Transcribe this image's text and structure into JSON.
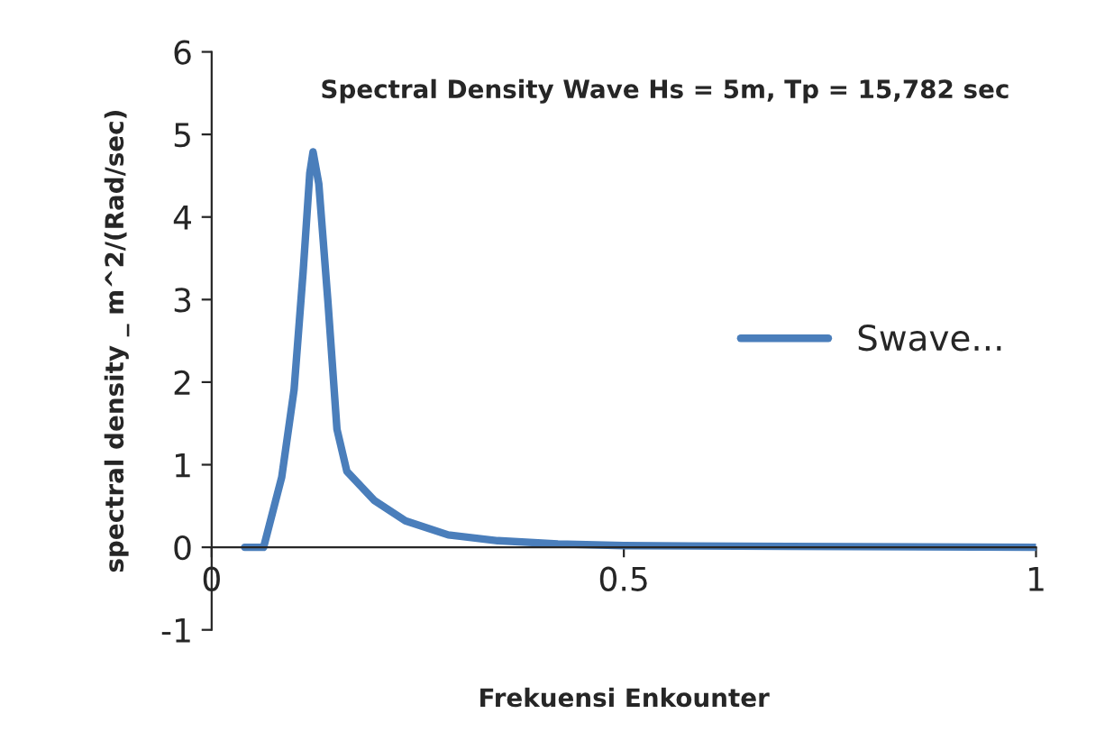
{
  "chart_data": {
    "type": "line",
    "title": "Spectral Density Wave Hs = 5m, Tp = 15,782 sec",
    "xlabel": "Frekuensi Enkounter",
    "ylabel": "spectral density _ m^2/(Rad/sec)",
    "x": [
      0.04,
      0.063,
      0.085,
      0.1,
      0.111,
      0.119,
      0.123,
      0.13,
      0.141,
      0.152,
      0.164,
      0.197,
      0.235,
      0.287,
      0.347,
      0.42,
      0.5,
      0.7,
      1.0
    ],
    "series": [
      {
        "name": "Swave...",
        "color": "#4a7ebb",
        "values": [
          0,
          0,
          0.85,
          1.91,
          3.34,
          4.53,
          4.79,
          4.4,
          2.98,
          1.43,
          0.92,
          0.57,
          0.32,
          0.15,
          0.08,
          0.04,
          0.02,
          0.01,
          0
        ]
      }
    ],
    "xlim": [
      0,
      1
    ],
    "ylim": [
      -1,
      6
    ],
    "xticks": [
      0,
      0.5,
      1
    ],
    "yticks": [
      -1,
      0,
      1,
      2,
      3,
      4,
      5,
      6
    ],
    "grid": false,
    "legend": "right",
    "marker": "none",
    "line_style": "solid"
  }
}
